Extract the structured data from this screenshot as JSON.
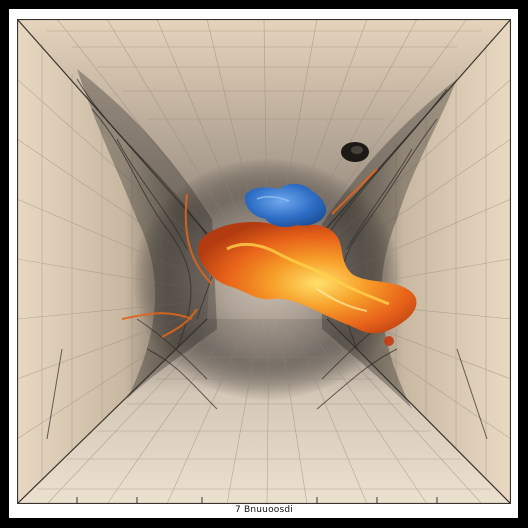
{
  "image": {
    "caption": "7 Bnuuoosdi",
    "palette": {
      "frame": "#000000",
      "background": "#e6d6bf",
      "wall_shadow": "#2f2a26",
      "grid_line": "#8e8476",
      "fire": "#f06a18",
      "fire_core": "#ffd34a",
      "blue_blob": "#3a7fd6"
    }
  }
}
